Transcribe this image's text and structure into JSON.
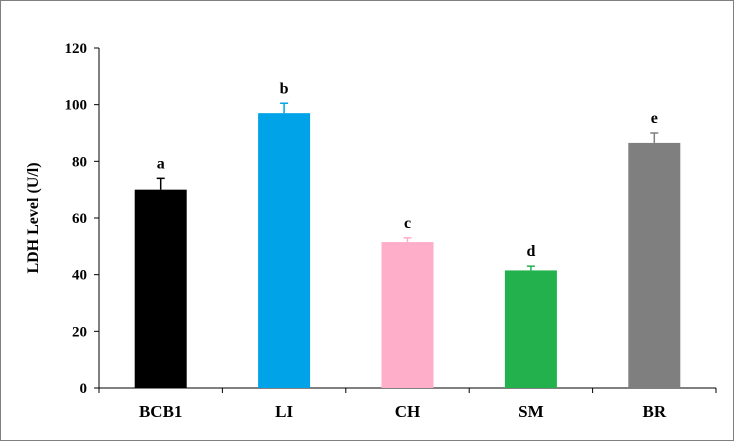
{
  "chart_data": {
    "type": "bar",
    "title": "",
    "xlabel": "",
    "ylabel": "LDH Level (U/l)",
    "ylim": [
      0,
      120
    ],
    "yticks": [
      0,
      20,
      40,
      60,
      80,
      100,
      120
    ],
    "grid": false,
    "legend": "none",
    "categories": [
      "BCB1",
      "LI",
      "CH",
      "SM",
      "BR"
    ],
    "values": [
      70,
      97,
      51.5,
      41.5,
      86.5
    ],
    "errors": [
      4,
      3.5,
      1.5,
      1.5,
      3.5
    ],
    "annotations": [
      "a",
      "b",
      "c",
      "d",
      "e"
    ],
    "colors": [
      "#000000",
      "#00a2e8",
      "#ffaec9",
      "#22b14c",
      "#7f7f7f"
    ]
  }
}
